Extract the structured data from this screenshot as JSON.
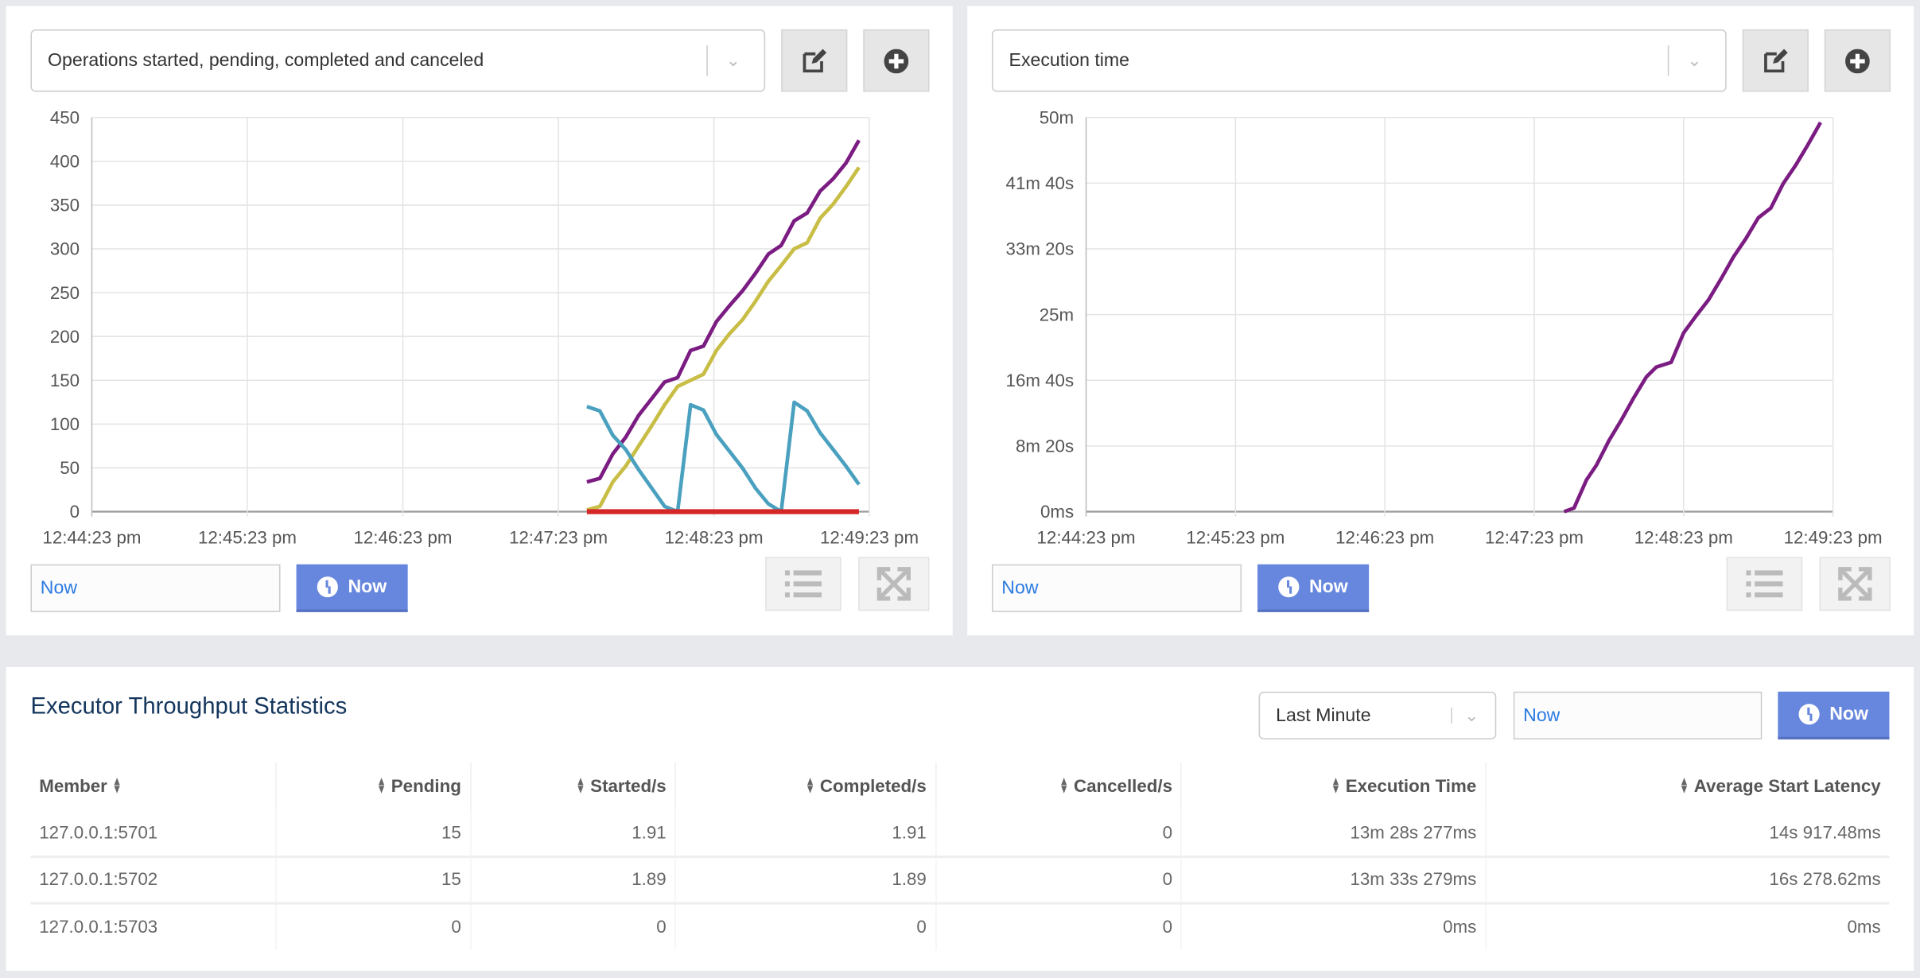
{
  "charts_ui": [
    {
      "selected_metric": "Operations started, pending, completed and canceled",
      "time_input": "Now",
      "now_button": "Now"
    },
    {
      "selected_metric": "Execution time",
      "time_input": "Now",
      "now_button": "Now"
    }
  ],
  "colors": {
    "purple": "#7b1c82",
    "yellow": "#c8bd45",
    "cyan": "#4aa0bf",
    "red": "#d62728",
    "accent": "#6687dd"
  },
  "icons": [
    "edit-icon",
    "plus-circle-icon",
    "list-icon",
    "expand-icon",
    "clock-icon",
    "chevron-down-icon",
    "sort-icon"
  ],
  "chart_data": [
    {
      "type": "line",
      "xlabel": "",
      "ylabel": "",
      "ylim": [
        0,
        450
      ],
      "y_ticks": [
        "0",
        "50",
        "100",
        "150",
        "200",
        "250",
        "300",
        "350",
        "400",
        "450"
      ],
      "x_ticks": [
        "12:44:23 pm",
        "12:45:23 pm",
        "12:46:23 pm",
        "12:47:23 pm",
        "12:48:23 pm",
        "12:49:23 pm"
      ],
      "xlim": [
        "12:44:23",
        "12:49:23"
      ],
      "grid": true,
      "x": [
        "12:47:34",
        "12:47:39",
        "12:47:44",
        "12:47:49",
        "12:47:54",
        "12:47:59",
        "12:48:04",
        "12:48:09",
        "12:48:14",
        "12:48:19",
        "12:48:24",
        "12:48:29",
        "12:48:34",
        "12:48:39",
        "12:48:44",
        "12:48:49",
        "12:48:54",
        "12:48:59",
        "12:49:04",
        "12:49:09",
        "12:49:14",
        "12:49:19"
      ],
      "series": [
        {
          "color": "#7b1c82",
          "values": [
            34,
            38,
            66,
            85,
            110,
            129,
            148,
            153,
            184,
            189,
            217,
            235,
            252,
            272,
            294,
            304,
            332,
            341,
            366,
            380,
            398,
            424
          ]
        },
        {
          "color": "#c8bd45",
          "values": [
            2,
            6,
            34,
            52,
            75,
            98,
            122,
            143,
            150,
            157,
            184,
            203,
            219,
            240,
            263,
            281,
            300,
            307,
            335,
            351,
            371,
            393
          ]
        },
        {
          "color": "#4aa0bf",
          "values": [
            120,
            115,
            87,
            71,
            48,
            27,
            6,
            0,
            122,
            116,
            88,
            69,
            50,
            27,
            9,
            0,
            125,
            115,
            90,
            71,
            52,
            31
          ]
        },
        {
          "color": "#d62728",
          "values": [
            0,
            0,
            0,
            0,
            0,
            0,
            0,
            0,
            0,
            0,
            0,
            0,
            0,
            0,
            0,
            0,
            0,
            0,
            0,
            0,
            0,
            0
          ]
        }
      ]
    },
    {
      "type": "line",
      "xlabel": "",
      "ylabel": "",
      "ylim": [
        0,
        3000
      ],
      "y_ticks": [
        "0ms",
        "8m 20s",
        "16m 40s",
        "25m",
        "33m 20s",
        "41m 40s",
        "50m"
      ],
      "x_ticks": [
        "12:44:23 pm",
        "12:45:23 pm",
        "12:46:23 pm",
        "12:47:23 pm",
        "12:48:23 pm",
        "12:49:23 pm"
      ],
      "xlim": [
        "12:44:23",
        "12:49:23"
      ],
      "grid": true,
      "x": [
        "12:47:35",
        "12:47:39",
        "12:47:44",
        "12:47:48",
        "12:47:53",
        "12:47:58",
        "12:48:03",
        "12:48:08",
        "12:48:12",
        "12:48:18",
        "12:48:23",
        "12:48:28",
        "12:48:33",
        "12:48:38",
        "12:48:43",
        "12:48:48",
        "12:48:53",
        "12:48:58",
        "12:49:03",
        "12:49:08",
        "12:49:13",
        "12:49:18"
      ],
      "series": [
        {
          "color": "#7b1c82",
          "values": [
            0,
            28,
            242,
            354,
            540,
            699,
            867,
            1025,
            1100,
            1137,
            1361,
            1491,
            1612,
            1771,
            1939,
            2078,
            2237,
            2311,
            2497,
            2637,
            2796,
            2963
          ]
        }
      ]
    }
  ],
  "stats": {
    "title": "Executor Throughput Statistics",
    "range_select": "Last Minute",
    "time_input": "Now",
    "now_button": "Now",
    "columns": [
      "Member",
      "Pending",
      "Started/s",
      "Completed/s",
      "Cancelled/s",
      "Execution Time",
      "Average Start Latency"
    ],
    "rows": [
      [
        "127.0.0.1:5701",
        "15",
        "1.91",
        "1.91",
        "0",
        "13m 28s 277ms",
        "14s 917.48ms"
      ],
      [
        "127.0.0.1:5702",
        "15",
        "1.89",
        "1.89",
        "0",
        "13m 33s 279ms",
        "16s 278.62ms"
      ],
      [
        "127.0.0.1:5703",
        "0",
        "0",
        "0",
        "0",
        "0ms",
        "0ms"
      ]
    ]
  }
}
